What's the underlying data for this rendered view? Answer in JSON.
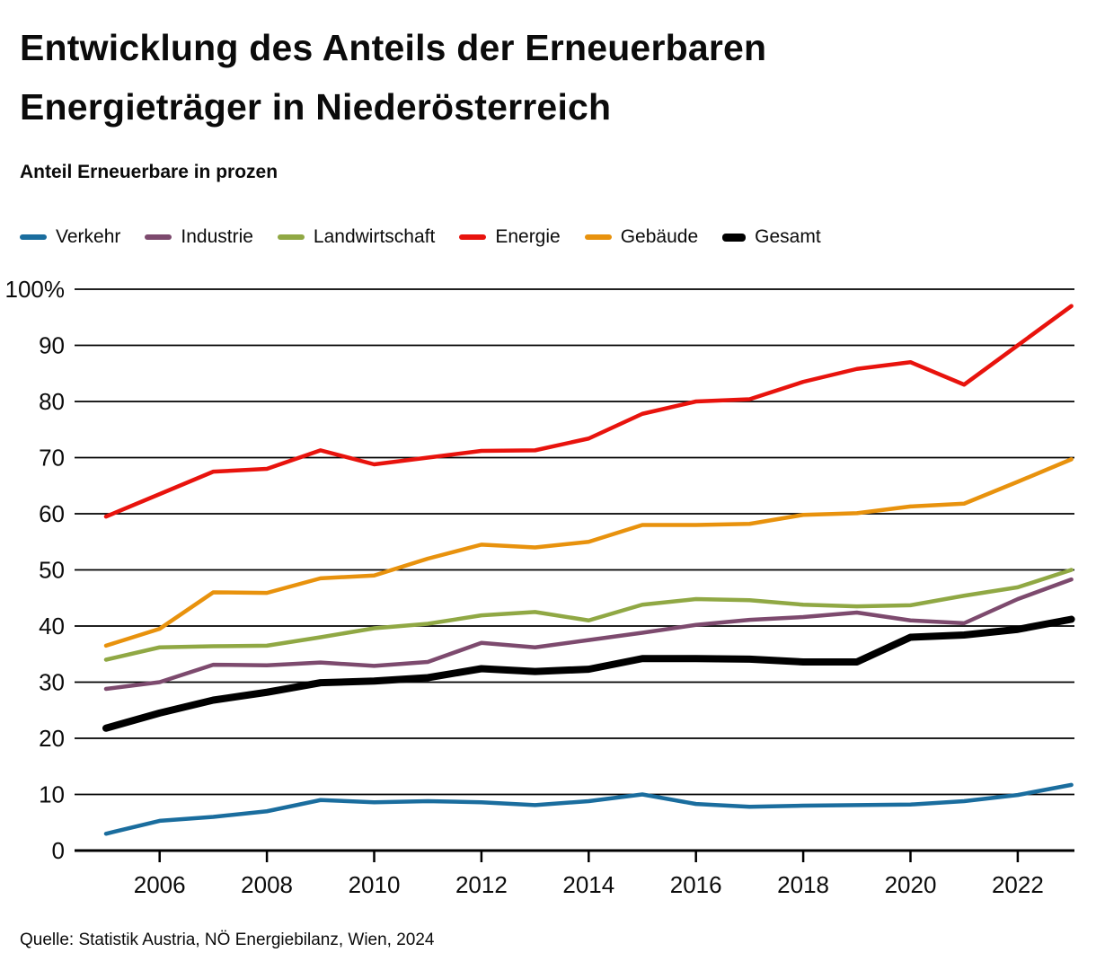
{
  "title": "Entwicklung des Anteils der Erneuerbaren\nEnergieträger in Niederösterreich",
  "subtitle": "Anteil Erneuerbare in prozen",
  "source": "Quelle: Statistik Austria, NÖ Energiebilanz, Wien, 2024",
  "chart_data": {
    "type": "line",
    "x": [
      2005,
      2006,
      2007,
      2008,
      2009,
      2010,
      2011,
      2012,
      2013,
      2014,
      2015,
      2016,
      2017,
      2018,
      2019,
      2020,
      2021,
      2022,
      2023
    ],
    "series": [
      {
        "name": "Verkehr",
        "color": "#1a6d9e",
        "values": [
          3,
          5.3,
          6,
          7,
          9,
          8.6,
          8.8,
          8.6,
          8.1,
          8.8,
          10,
          8.3,
          7.8,
          8,
          8.1,
          8.2,
          8.8,
          9.9,
          11.7
        ]
      },
      {
        "name": "Industrie",
        "color": "#7d4a6e",
        "values": [
          28.8,
          30,
          33.1,
          33,
          33.5,
          32.9,
          33.6,
          37,
          36.2,
          37.5,
          38.8,
          40.2,
          41.1,
          41.6,
          42.4,
          41,
          40.5,
          44.8,
          48.3
        ]
      },
      {
        "name": "Landwirtschaft",
        "color": "#90a844",
        "values": [
          34,
          36.2,
          36.4,
          36.5,
          38,
          39.6,
          40.4,
          41.9,
          42.5,
          41,
          43.8,
          44.8,
          44.6,
          43.8,
          43.5,
          43.7,
          45.4,
          46.9,
          50
        ]
      },
      {
        "name": "Energie",
        "color": "#e8130d",
        "values": [
          59.5,
          63.5,
          67.5,
          68,
          71.3,
          68.8,
          70,
          71.2,
          71.3,
          73.4,
          77.8,
          80,
          80.4,
          83.5,
          85.8,
          87,
          83,
          90,
          97
        ]
      },
      {
        "name": "Gebäude",
        "color": "#e8920d",
        "values": [
          36.5,
          39.5,
          46,
          45.9,
          48.5,
          49,
          52,
          54.5,
          54,
          55,
          58,
          58,
          58.2,
          59.8,
          60.1,
          61.3,
          61.8,
          65.7,
          69.7
        ]
      },
      {
        "name": "Gesamt",
        "color": "#000000",
        "values": [
          21.8,
          24.5,
          26.8,
          28.2,
          29.9,
          30.2,
          30.8,
          32.4,
          31.9,
          32.3,
          34.2,
          34.2,
          34.1,
          33.6,
          33.6,
          38,
          38.4,
          39.4,
          41.2
        ],
        "thick": true
      }
    ],
    "ylim": [
      0,
      100
    ],
    "ytick_values": [
      100,
      90,
      80,
      70,
      60,
      50,
      40,
      30,
      20,
      10,
      0
    ],
    "ytick_labels": [
      "100%",
      "90",
      "80",
      "70",
      "60",
      "50",
      "40",
      "30",
      "20",
      "10",
      "0"
    ],
    "xtick_values": [
      2006,
      2008,
      2010,
      2012,
      2014,
      2016,
      2018,
      2020,
      2022
    ],
    "xtick_labels": [
      "2006",
      "2008",
      "2010",
      "2012",
      "2014",
      "2016",
      "2018",
      "2020",
      "2022"
    ],
    "grid": "horizontal",
    "legend_position": "top"
  }
}
